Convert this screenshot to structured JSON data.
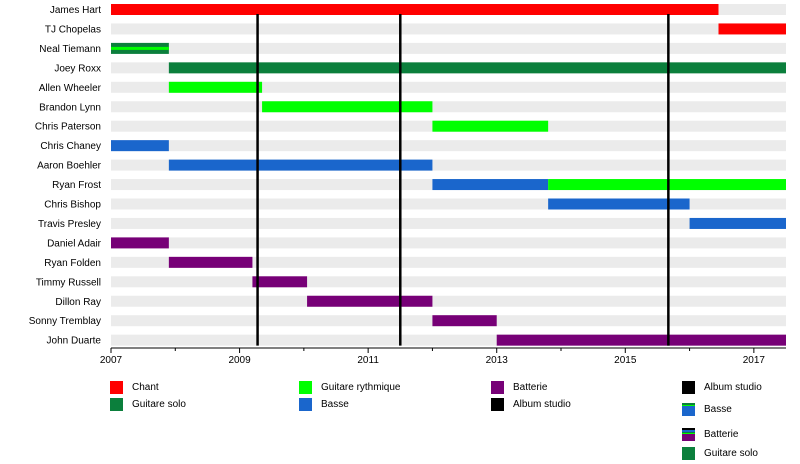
{
  "chart_data": {
    "type": "timeline",
    "xlim": [
      2007,
      2017.5
    ],
    "x_ticks": [
      "2007",
      "2009",
      "2011",
      "2013",
      "2015",
      "2017"
    ],
    "grid": true,
    "colors": {
      "Chant": "#ff0000",
      "Guitare solo": "#0b7f3c",
      "Guitare rythmique": "#00ff00",
      "Basse": "#1a66cc",
      "Batterie": "#770077",
      "Album studio": "#000000",
      "row_background": "#ebebeb"
    },
    "members": [
      {
        "name": "James Hart",
        "periods": [
          {
            "role": "Chant",
            "start": 2007.0,
            "end": 2016.45
          }
        ]
      },
      {
        "name": "TJ Chopelas",
        "periods": [
          {
            "role": "Chant",
            "start": 2016.45,
            "end": 2017.5
          }
        ]
      },
      {
        "name": "Neal Tiemann",
        "periods": [
          {
            "role": "Guitare solo",
            "start": 2007.0,
            "end": 2007.9
          },
          {
            "role": "Guitare rythmique",
            "start": 2007.0,
            "end": 2007.9,
            "stripe": true
          }
        ]
      },
      {
        "name": "Joey Roxx",
        "periods": [
          {
            "role": "Guitare solo",
            "start": 2007.9,
            "end": 2017.5
          }
        ]
      },
      {
        "name": "Allen Wheeler",
        "periods": [
          {
            "role": "Guitare rythmique",
            "start": 2007.9,
            "end": 2009.35
          }
        ]
      },
      {
        "name": "Brandon Lynn",
        "periods": [
          {
            "role": "Guitare rythmique",
            "start": 2009.35,
            "end": 2012.0
          }
        ]
      },
      {
        "name": "Chris Paterson",
        "periods": [
          {
            "role": "Guitare rythmique",
            "start": 2012.0,
            "end": 2013.8
          }
        ]
      },
      {
        "name": "Chris Chaney",
        "periods": [
          {
            "role": "Basse",
            "start": 2007.0,
            "end": 2007.9
          }
        ]
      },
      {
        "name": "Aaron Boehler",
        "periods": [
          {
            "role": "Basse",
            "start": 2007.9,
            "end": 2012.0
          }
        ]
      },
      {
        "name": "Ryan Frost",
        "periods": [
          {
            "role": "Basse",
            "start": 2012.0,
            "end": 2013.8
          },
          {
            "role": "Guitare rythmique",
            "start": 2013.8,
            "end": 2017.5
          }
        ]
      },
      {
        "name": "Chris Bishop",
        "periods": [
          {
            "role": "Basse",
            "start": 2013.8,
            "end": 2016.0
          }
        ]
      },
      {
        "name": "Travis Presley",
        "periods": [
          {
            "role": "Basse",
            "start": 2016.0,
            "end": 2017.5
          }
        ]
      },
      {
        "name": "Daniel Adair",
        "periods": [
          {
            "role": "Batterie",
            "start": 2007.0,
            "end": 2007.9
          }
        ]
      },
      {
        "name": "Ryan Folden",
        "periods": [
          {
            "role": "Batterie",
            "start": 2007.9,
            "end": 2009.2
          }
        ]
      },
      {
        "name": "Timmy Russell",
        "periods": [
          {
            "role": "Batterie",
            "start": 2009.2,
            "end": 2010.05
          }
        ]
      },
      {
        "name": "Dillon Ray",
        "periods": [
          {
            "role": "Batterie",
            "start": 2010.05,
            "end": 2012.0
          }
        ]
      },
      {
        "name": "Sonny Tremblay",
        "periods": [
          {
            "role": "Batterie",
            "start": 2012.0,
            "end": 2013.0
          }
        ]
      },
      {
        "name": "John Duarte",
        "periods": [
          {
            "role": "Batterie",
            "start": 2013.0,
            "end": 2017.5
          }
        ]
      }
    ],
    "album_lines": [
      2009.28,
      2011.5,
      2015.67
    ],
    "legend": [
      {
        "label": "Chant",
        "color": "#ff0000",
        "swatch": "solid"
      },
      {
        "label": "Guitare solo",
        "color": "#0b7f3c",
        "swatch": "solid"
      },
      {
        "label": "Guitare rythmique",
        "color": "#00ff00",
        "swatch": "solid"
      },
      {
        "label": "Basse",
        "color": "#1a66cc",
        "swatch": "solid"
      },
      {
        "label": "Batterie",
        "color": "#770077",
        "swatch": "solid"
      },
      {
        "label": "Album studio",
        "color": "#000000",
        "swatch": "solid"
      },
      {
        "label": "Album studio",
        "color": "#000000",
        "swatch": "solid"
      },
      {
        "label": "Basse",
        "color": "#1a66cc",
        "swatch": "stripe-top"
      },
      {
        "label": "Batterie",
        "color": "#770077",
        "swatch": "stripe-multi"
      },
      {
        "label": "Guitare solo",
        "color": "#0b7f3c",
        "swatch": "solid"
      }
    ]
  }
}
